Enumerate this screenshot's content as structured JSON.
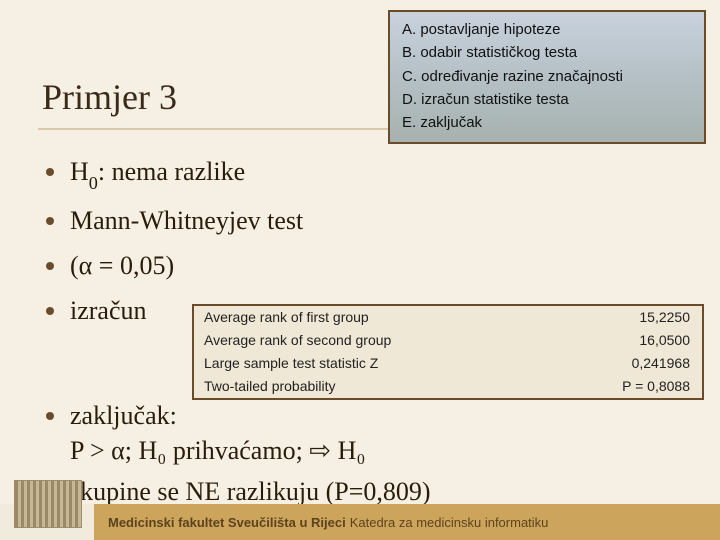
{
  "background_color": "#f5f0e3",
  "title": "Primjer 3",
  "title_fontsize": 36,
  "title_color": "#3b2a18",
  "rule_color": "#d9c9a8",
  "steps_box": {
    "border_color": "#6b4c2a",
    "bg_gradient": [
      "#c9d2dd",
      "#b6c2c8",
      "#a7b1af"
    ],
    "font_family": "Arial",
    "font_size": 15,
    "items": [
      "postavljanje hipoteze",
      "odabir statističkog testa",
      "određivanje razine značajnosti",
      "izračun statistike testa",
      "zaključak"
    ]
  },
  "bullets": {
    "font_size": 26,
    "dot_color": "#6b4c2a",
    "items": [
      {
        "pre": "H",
        "sub": "0",
        "rest": ": nema razlike"
      },
      {
        "text": "Mann-Whitneyjev test"
      },
      {
        "text": "(α = 0,05)"
      },
      {
        "text": "izračun"
      }
    ]
  },
  "table": {
    "border_color": "#6b4c2a",
    "background": "#efe8d6",
    "font_size": 14,
    "rows": [
      {
        "label": "Average rank of first group",
        "value": "15,2250"
      },
      {
        "label": "Average rank of second group",
        "value": "16,0500"
      },
      {
        "label": "Large sample test statistic Z",
        "value": "0,241968"
      },
      {
        "label": "Two-tailed probability",
        "value": "P = 0,8088"
      }
    ]
  },
  "conclusion": {
    "line1_label": "zaključak:",
    "line1_rest": "P > α; H₀ prihvaćamo; ⇨ H₀",
    "line2": "skupine se NE razlikuju (P=0,809)"
  },
  "footer": {
    "band_color": "#cda45c",
    "text_color": "#5c431e",
    "strong": "Medicinski fakultet Sveučilišta u Rijeci",
    "rest": "Katedra za medicinsku informatiku"
  }
}
